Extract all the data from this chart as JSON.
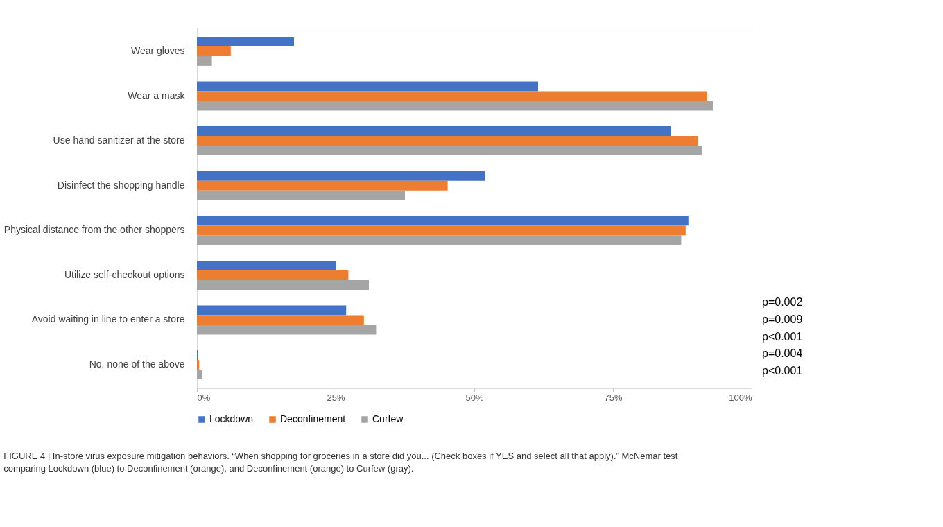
{
  "chart_data": {
    "type": "bar",
    "orientation": "horizontal",
    "categories": [
      "Wear gloves",
      "Wear a mask",
      "Use hand sanitizer at the store",
      "Disinfect the shopping handle",
      "Physical distance from the other shoppers",
      "Utilize self-checkout options",
      "Avoid waiting in line to enter a store",
      "No, none of the above"
    ],
    "series": [
      {
        "name": "Lockdown",
        "color": "#4472c4",
        "values": [
          17.5,
          61.5,
          85.5,
          51.9,
          88.6,
          25.1,
          26.9,
          0.2
        ]
      },
      {
        "name": "Deconfinement",
        "color": "#ed7d31",
        "values": [
          6.1,
          92,
          90.3,
          45.2,
          88.1,
          27.3,
          30.1,
          0.4
        ]
      },
      {
        "name": "Curfew",
        "color": "#a5a5a5",
        "values": [
          2.7,
          93,
          91,
          37.5,
          87.3,
          31,
          32.3,
          0.9
        ]
      }
    ],
    "xlim": [
      0,
      100
    ],
    "xticks": [
      {
        "value": 0,
        "label": "0%"
      },
      {
        "value": 25,
        "label": "25%"
      },
      {
        "value": 50,
        "label": "50%"
      },
      {
        "value": 75,
        "label": "75%"
      },
      {
        "value": 100,
        "label": "100%"
      }
    ],
    "grid": false,
    "legend": "bottom",
    "annotations": [
      "p<0.001",
      "p=0.004",
      "p<0.001",
      "p=0.009",
      "p=0.002",
      "FIGURE 4 | In-store virus exposure mitigation behaviors. “When shopping for groceries in a store did you... (Check boxes if YES and select all that apply).” McNemar test comparing Lockdown (blue) to Deconfinement (orange), and Deconfinement (orange) to Curfew (gray)."
    ]
  }
}
